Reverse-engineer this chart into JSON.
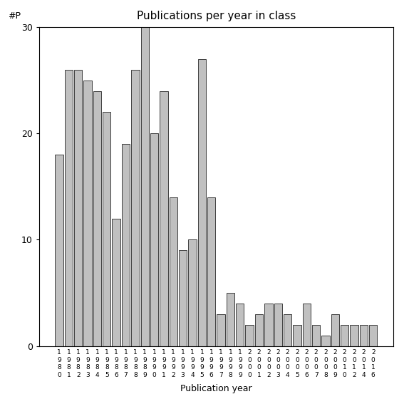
{
  "title": "Publications per year in class",
  "xlabel": "Publication year",
  "ylabel": "#P",
  "bar_color": "#c0c0c0",
  "bar_edge_color": "#000000",
  "bar_edge_width": 0.5,
  "ylim": [
    0,
    30
  ],
  "yticks": [
    0,
    10,
    20,
    30
  ],
  "categories": [
    "1980",
    "1981",
    "1982",
    "1983",
    "1984",
    "1985",
    "1986",
    "1987",
    "1988",
    "1989",
    "1990",
    "1991",
    "1992",
    "1993",
    "1994",
    "1995",
    "1996",
    "1997",
    "1998",
    "1999",
    "2000",
    "2001",
    "2002",
    "2003",
    "2004",
    "2005",
    "2006",
    "2007",
    "2008",
    "2009",
    "2010",
    "2012",
    "2014",
    "2016"
  ],
  "values": [
    18,
    26,
    26,
    25,
    24,
    22,
    12,
    19,
    26,
    30,
    20,
    24,
    14,
    9,
    10,
    27,
    14,
    3,
    5,
    4,
    2,
    3,
    4,
    4,
    3,
    2,
    4,
    2,
    1,
    3,
    2,
    2,
    2,
    2
  ],
  "background_color": "#ffffff",
  "figsize": [
    5.67,
    5.67
  ],
  "dpi": 100
}
